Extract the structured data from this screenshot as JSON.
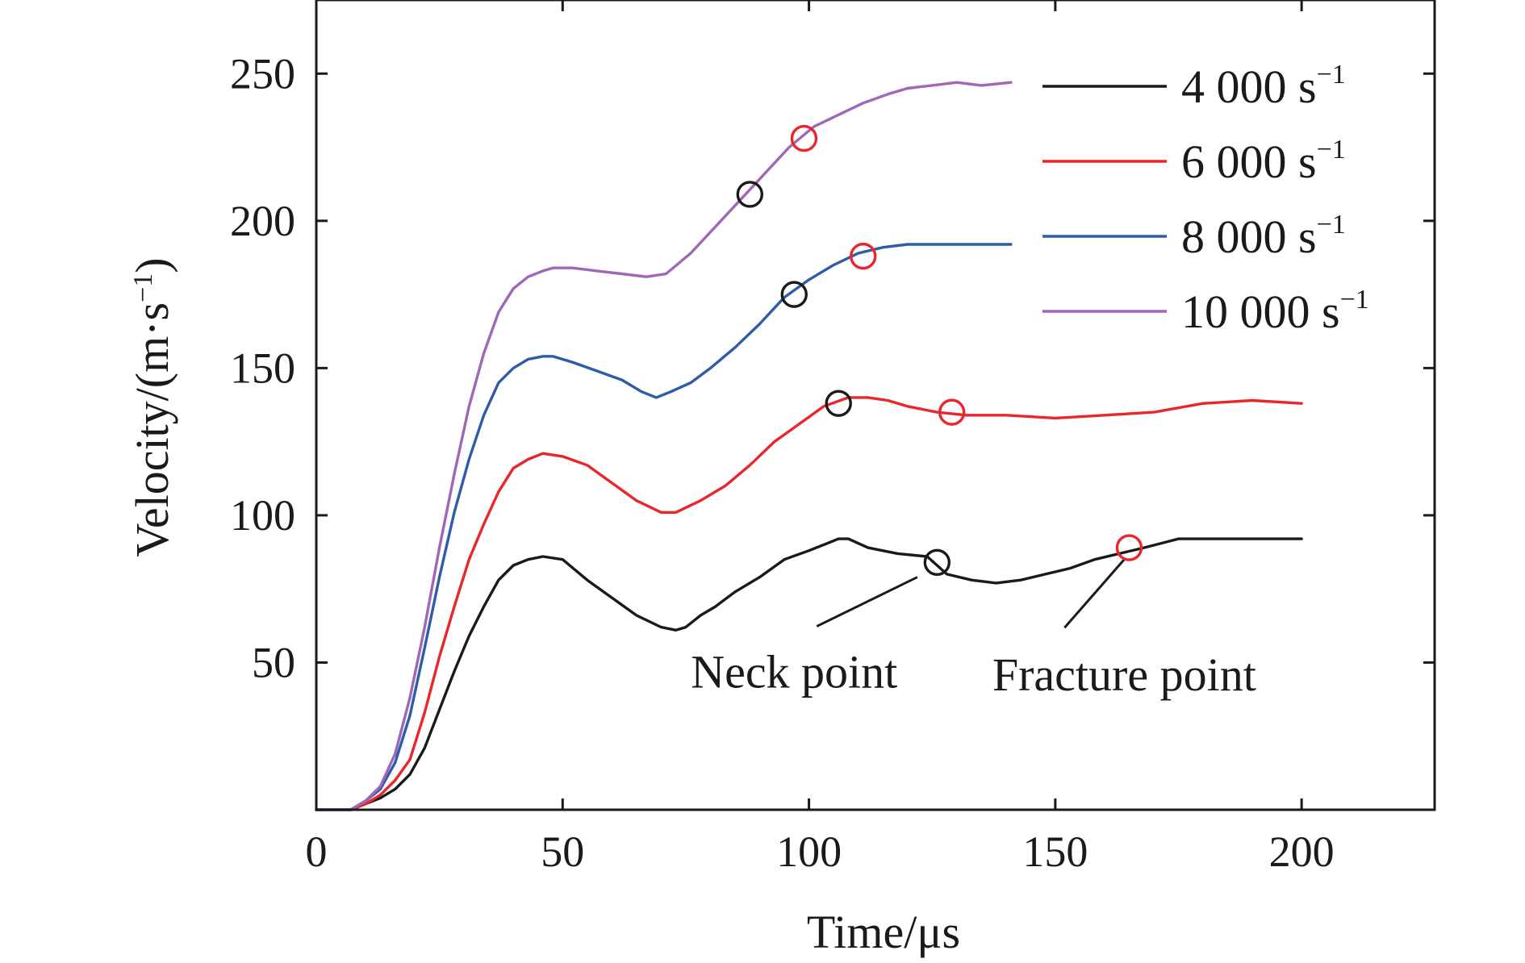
{
  "chart_data": {
    "type": "line",
    "title": "",
    "xlabel": "Time/μs",
    "ylabel": "Velocity/(m·s",
    "ylabel_sup": "−1",
    "ylabel_close": ")",
    "xlim": [
      0,
      227
    ],
    "ylim": [
      0,
      275
    ],
    "x_ticks": [
      0,
      50,
      100,
      150,
      200
    ],
    "y_ticks": [
      50,
      100,
      150,
      200,
      250
    ],
    "x_tick_labels": [
      "0",
      "50",
      "100",
      "150",
      "200"
    ],
    "y_tick_labels": [
      "50",
      "100",
      "150",
      "200",
      "250"
    ],
    "grid": false,
    "legend_position": "top-right",
    "series": [
      {
        "name": "4 000 s",
        "name_sup": "−1",
        "color": "#1a1a1a",
        "x": [
          0,
          4,
          7,
          10,
          13,
          16,
          19,
          22,
          25,
          28,
          31,
          34,
          37,
          40,
          43,
          46,
          50,
          55,
          60,
          65,
          70,
          73,
          75,
          78,
          81,
          85,
          90,
          95,
          100,
          103,
          106,
          108,
          112,
          118,
          124,
          128,
          133,
          138,
          143,
          148,
          153,
          158,
          163,
          168,
          175,
          185,
          200
        ],
        "values": [
          0,
          0,
          0,
          2,
          4,
          7,
          12,
          21,
          34,
          47,
          59,
          69,
          78,
          83,
          85,
          86,
          85,
          78,
          72,
          66,
          62,
          61,
          62,
          66,
          69,
          74,
          79,
          85,
          88,
          90,
          92,
          92,
          89,
          87,
          86,
          80,
          78,
          77,
          78,
          80,
          82,
          85,
          87,
          89,
          92,
          92,
          92
        ]
      },
      {
        "name": "6 000 s",
        "name_sup": "−1",
        "color": "#e8262b",
        "x": [
          0,
          4,
          7,
          10,
          13,
          16,
          19,
          22,
          25,
          28,
          31,
          34,
          37,
          40,
          43,
          46,
          50,
          55,
          60,
          65,
          70,
          73,
          78,
          83,
          88,
          93,
          98,
          103,
          108,
          112,
          116,
          120,
          126,
          132,
          140,
          150,
          160,
          170,
          180,
          190,
          200
        ],
        "values": [
          0,
          0,
          0,
          2,
          5,
          10,
          17,
          33,
          52,
          69,
          85,
          97,
          108,
          116,
          119,
          121,
          120,
          117,
          111,
          105,
          101,
          101,
          105,
          110,
          117,
          125,
          131,
          137,
          140,
          140,
          139,
          137,
          135,
          134,
          134,
          133,
          134,
          135,
          138,
          139,
          138
        ]
      },
      {
        "name": "8 000 s",
        "name_sup": "−1",
        "color": "#2e5ca8",
        "x": [
          0,
          4,
          7,
          10,
          13,
          16,
          19,
          22,
          25,
          28,
          31,
          34,
          37,
          40,
          43,
          46,
          48,
          52,
          57,
          62,
          66,
          69,
          72,
          76,
          80,
          85,
          90,
          95,
          100,
          105,
          110,
          115,
          120,
          125,
          130,
          135,
          141
        ],
        "values": [
          0,
          0,
          0,
          3,
          7,
          16,
          32,
          55,
          79,
          101,
          119,
          134,
          145,
          150,
          153,
          154,
          154,
          152,
          149,
          146,
          142,
          140,
          142,
          145,
          150,
          157,
          165,
          174,
          180,
          185,
          189,
          191,
          192,
          192,
          192,
          192,
          192
        ]
      },
      {
        "name": "10 000 s",
        "name_sup": "−1",
        "color": "#a066b8",
        "x": [
          0,
          4,
          7,
          10,
          13,
          16,
          19,
          22,
          25,
          28,
          31,
          34,
          37,
          40,
          43,
          46,
          48,
          52,
          57,
          62,
          67,
          71,
          76,
          81,
          86,
          91,
          96,
          101,
          106,
          111,
          116,
          120,
          125,
          130,
          135,
          141
        ],
        "values": [
          0,
          0,
          0,
          3,
          8,
          19,
          38,
          62,
          89,
          114,
          137,
          155,
          169,
          177,
          181,
          183,
          184,
          184,
          183,
          182,
          181,
          182,
          189,
          198,
          207,
          216,
          225,
          232,
          236,
          240,
          243,
          245,
          246,
          247,
          246,
          247
        ]
      }
    ],
    "neck_points": [
      {
        "series": "4 000 s",
        "x": 126,
        "y": 84
      },
      {
        "series": "6 000 s",
        "x": 106,
        "y": 138
      },
      {
        "series": "8 000 s",
        "x": 97,
        "y": 175
      },
      {
        "series": "10 000 s",
        "x": 88,
        "y": 209
      }
    ],
    "fracture_points": [
      {
        "series": "4 000 s",
        "x": 165,
        "y": 89
      },
      {
        "series": "6 000 s",
        "x": 129,
        "y": 135
      },
      {
        "series": "8 000 s",
        "x": 111,
        "y": 188
      },
      {
        "series": "10 000 s",
        "x": 99,
        "y": 228
      }
    ],
    "annotations": [
      {
        "text": "Neck point",
        "label_x": 97,
        "label_y": 36,
        "tip_x": 122,
        "tip_y": 79
      },
      {
        "text": "Fracture point",
        "label_x": 164,
        "label_y": 35,
        "tip_x": 164,
        "tip_y": 85
      }
    ],
    "marker_colors": {
      "neck": "#1a1a1a",
      "fracture": "#e8262b"
    }
  }
}
